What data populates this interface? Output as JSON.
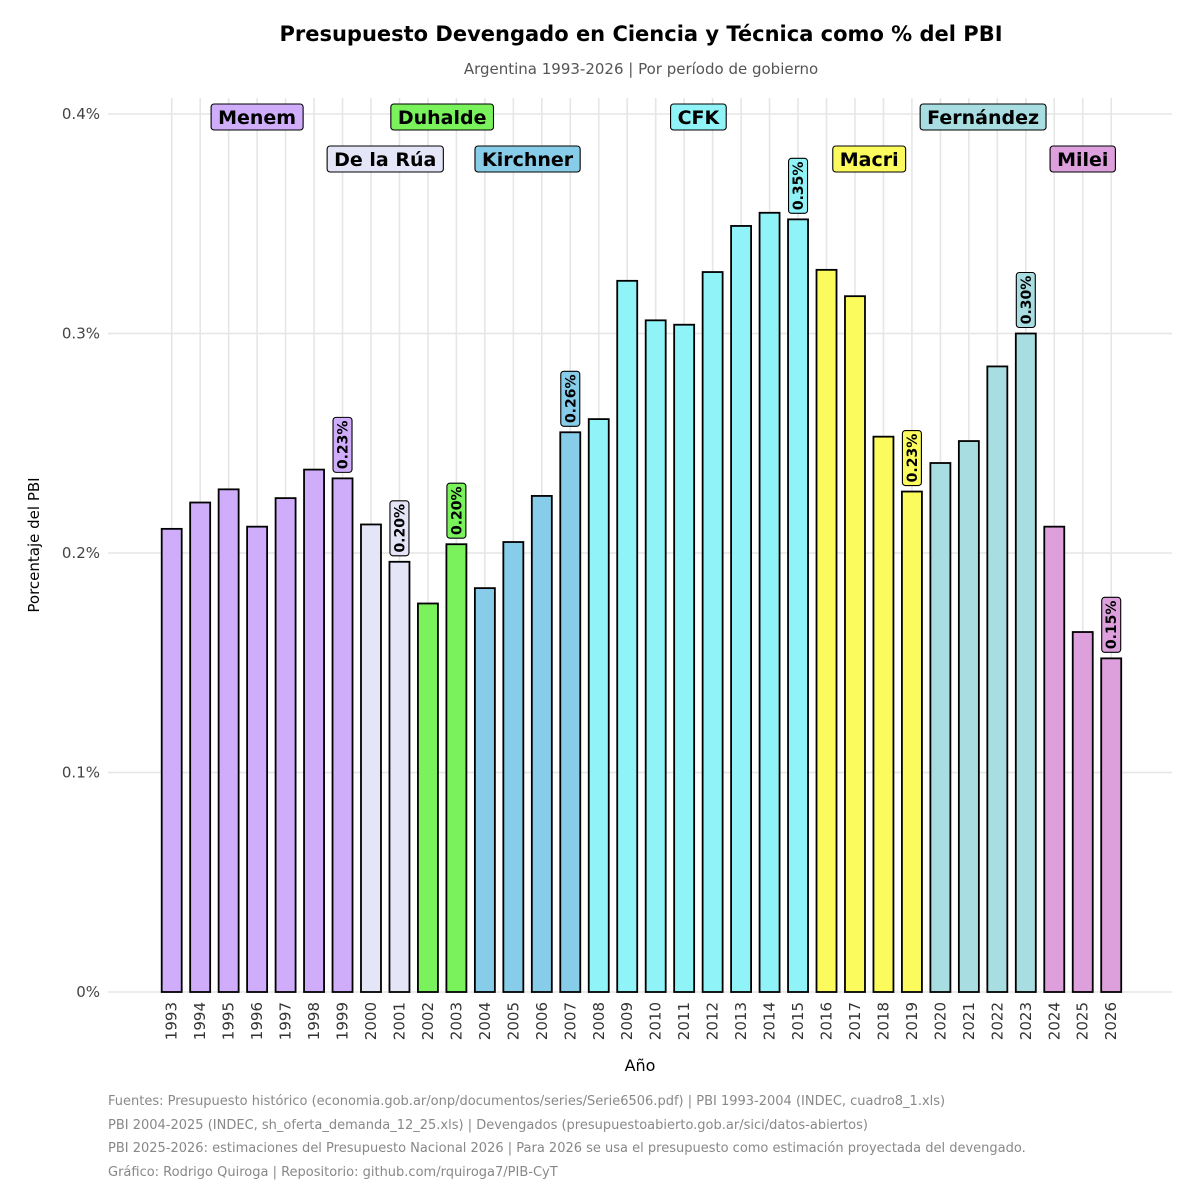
{
  "chart_data": {
    "type": "bar",
    "title": "Presupuesto Devengado en Ciencia y Técnica como % del PBI",
    "subtitle": "Argentina 1993-2026 | Por período de gobierno",
    "xlabel": "Año",
    "ylabel": "Porcentaje del PBI",
    "ylim": [
      0,
      0.4
    ],
    "yticks": [
      0,
      0.1,
      0.2,
      0.3,
      0.4
    ],
    "ytick_labels": [
      "0%",
      "0.1%",
      "0.2%",
      "0.3%",
      "0.4%"
    ],
    "grid": true,
    "categories": [
      "1993",
      "1994",
      "1995",
      "1996",
      "1997",
      "1998",
      "1999",
      "2000",
      "2001",
      "2002",
      "2003",
      "2004",
      "2005",
      "2006",
      "2007",
      "2008",
      "2009",
      "2010",
      "2011",
      "2012",
      "2013",
      "2014",
      "2015",
      "2016",
      "2017",
      "2018",
      "2019",
      "2020",
      "2021",
      "2022",
      "2023",
      "2024",
      "2025",
      "2026"
    ],
    "values": [
      0.211,
      0.223,
      0.229,
      0.212,
      0.225,
      0.238,
      0.234,
      0.213,
      0.196,
      0.177,
      0.204,
      0.184,
      0.205,
      0.226,
      0.255,
      0.261,
      0.324,
      0.306,
      0.304,
      0.328,
      0.349,
      0.355,
      0.352,
      0.329,
      0.317,
      0.253,
      0.228,
      0.241,
      0.251,
      0.285,
      0.3,
      0.212,
      0.164,
      0.152
    ],
    "governments": [
      {
        "name": "Menem",
        "from": "1993",
        "to": "1999",
        "color": "#cfadfb",
        "label_row": 1
      },
      {
        "name": "De la Rúa",
        "from": "2000",
        "to": "2001",
        "color": "#e5e5f8",
        "label_row": 2
      },
      {
        "name": "Duhalde",
        "from": "2002",
        "to": "2003",
        "color": "#79f25c",
        "label_row": 1
      },
      {
        "name": "Kirchner",
        "from": "2004",
        "to": "2007",
        "color": "#87cdea",
        "label_row": 2
      },
      {
        "name": "CFK",
        "from": "2008",
        "to": "2015",
        "color": "#8ff3f7",
        "label_row": 1
      },
      {
        "name": "Macri",
        "from": "2016",
        "to": "2019",
        "color": "#fbfb5d",
        "label_row": 2
      },
      {
        "name": "Fernández",
        "from": "2020",
        "to": "2023",
        "color": "#a8dde1",
        "label_row": 1
      },
      {
        "name": "Milei",
        "from": "2024",
        "to": "2026",
        "color": "#dda0dd",
        "label_row": 2
      }
    ],
    "end_labels": [
      {
        "year": "1999",
        "text": "0.23%"
      },
      {
        "year": "2001",
        "text": "0.20%"
      },
      {
        "year": "2003",
        "text": "0.20%"
      },
      {
        "year": "2007",
        "text": "0.26%"
      },
      {
        "year": "2015",
        "text": "0.35%"
      },
      {
        "year": "2019",
        "text": "0.23%"
      },
      {
        "year": "2023",
        "text": "0.30%"
      },
      {
        "year": "2026",
        "text": "0.15%"
      }
    ]
  },
  "footer": {
    "line1": "Fuentes: Presupuesto histórico (economia.gob.ar/onp/documentos/series/Serie6506.pdf) | PBI 1993-2004 (INDEC, cuadro8_1.xls)",
    "line2": "PBI 2004-2025 (INDEC, sh_oferta_demanda_12_25.xls) | Devengados (presupuestoabierto.gob.ar/sici/datos-abiertos)",
    "line3": "PBI 2025-2026: estimaciones del Presupuesto Nacional 2026 | Para 2026 se usa el presupuesto como estimación proyectada del devengado.",
    "line4": "Gráfico: Rodrigo Quiroga | Repositorio: github.com/rquiroga7/PIB-CyT"
  }
}
